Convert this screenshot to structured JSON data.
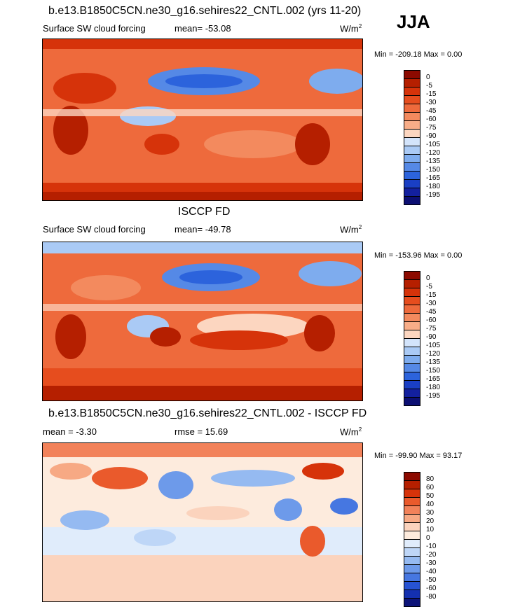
{
  "season": "JJA",
  "panels": [
    {
      "header": "b.e13.B1850C5CN.ne30_g16.sehires22_CNTL.002 (yrs 11-20)",
      "left_label": "Surface SW cloud forcing",
      "center_label": "mean= -53.08",
      "units": "W/m",
      "units_sup": "2",
      "minmax": "Min = -209.18 Max =   0.00",
      "colorbar": [
        "0",
        "-5",
        "-15",
        "-30",
        "-45",
        "-60",
        "-75",
        "-90",
        "-105",
        "-120",
        "-135",
        "-150",
        "-165",
        "-180",
        "-195"
      ]
    },
    {
      "header": "ISCCP FD",
      "left_label": "Surface SW cloud forcing",
      "center_label": "mean= -49.78",
      "units": "W/m",
      "units_sup": "2",
      "minmax": "Min = -153.96 Max =   0.00",
      "colorbar": [
        "0",
        "-5",
        "-15",
        "-30",
        "-45",
        "-60",
        "-75",
        "-90",
        "-105",
        "-120",
        "-135",
        "-150",
        "-165",
        "-180",
        "-195"
      ]
    },
    {
      "header": "b.e13.B1850C5CN.ne30_g16.sehires22_CNTL.002 - ISCCP FD",
      "left_label": "mean =  -3.30",
      "center_label": "rmse =  15.69",
      "units": "W/m",
      "units_sup": "2",
      "minmax": "Min = -99.90 Max =  93.17",
      "colorbar": [
        "80",
        "60",
        "50",
        "40",
        "30",
        "20",
        "10",
        "0",
        "-10",
        "-20",
        "-30",
        "-40",
        "-50",
        "-60",
        "-80"
      ]
    }
  ],
  "colors": {
    "forcing_scale": [
      "#8c0a00",
      "#b51f00",
      "#d6330a",
      "#e64d1e",
      "#ee6a3c",
      "#f38a5e",
      "#f8ad88",
      "#fcd6c0",
      "#d3e4fb",
      "#aacaf5",
      "#7eacee",
      "#5589e6",
      "#2c63dc",
      "#1a3fc4",
      "#13209f",
      "#0c0f73"
    ],
    "diff_scale": [
      "#8c0a00",
      "#b51f00",
      "#d6330a",
      "#ea5a2c",
      "#f2825a",
      "#f7a984",
      "#fbd3bd",
      "#fdebdd",
      "#e0ecfb",
      "#bed6f7",
      "#95baf1",
      "#6d9aea",
      "#4677e1",
      "#2753d3",
      "#1430b0",
      "#0d1479"
    ]
  }
}
